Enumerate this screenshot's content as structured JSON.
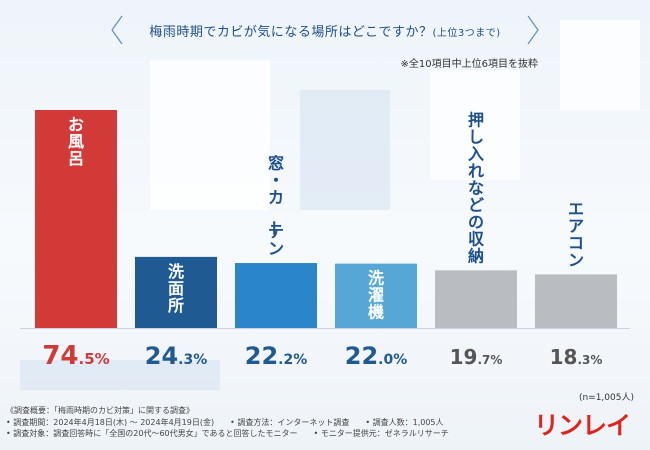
{
  "header": {
    "title": "梅雨時期でカビが気になる場所はどこですか？",
    "title_suffix": "(上位3つまで)",
    "note": "※全10項目中上位6項目を抜粋"
  },
  "chart_data": {
    "type": "bar",
    "title": "梅雨時期でカビが気になる場所はどこですか？(上位3つまで)",
    "categories": [
      "お風呂",
      "洗面所",
      "窓・カーテン",
      "洗濯機",
      "押し入れなどの収納",
      "エアコン"
    ],
    "values": [
      74.5,
      24.3,
      22.2,
      22.0,
      19.7,
      18.3
    ],
    "value_labels": [
      {
        "int": "74",
        "dec": ".5",
        "unit": "%"
      },
      {
        "int": "24",
        "dec": ".3",
        "unit": "%"
      },
      {
        "int": "22",
        "dec": ".2",
        "unit": "%"
      },
      {
        "int": "22",
        "dec": ".0",
        "unit": "%"
      },
      {
        "int": "19",
        "dec": ".7",
        "unit": "%"
      },
      {
        "int": "18",
        "dec": ".3",
        "unit": "%"
      }
    ],
    "colors": [
      "#d23a37",
      "#1f5a92",
      "#2a86c8",
      "#56a7d6",
      "#b9bcc0",
      "#b9bcc0"
    ],
    "label_text_colors": [
      "#ffffff",
      "#ffffff",
      "#1d4f8c",
      "#ffffff",
      "#333333",
      "#333333"
    ],
    "value_colors": [
      "#d23a37",
      "#1f5a92",
      "#1f5a92",
      "#1f5a92",
      "#555555",
      "#555555"
    ],
    "ylim": [
      0,
      80
    ],
    "xlabel": "",
    "ylabel": ""
  },
  "sample_size": "(n=1,005人)",
  "footer": {
    "line1": "《調査概要：「梅雨時期のカビ対策」に関する調査》",
    "period": "• 調査期間：2024年4月18日(木) ～ 2024年4月19日(金)",
    "method": "• 調査方法：インターネット調査",
    "count": "• 調査人数：1,005人",
    "target": "• 調査対象：調査回答時に「全国の20代～60代男女」であると回答したモニター",
    "provider": "• モニター提供元：ゼネラルリサーチ"
  },
  "brand": {
    "name": "リンレイ",
    "color": "#e3221a"
  }
}
